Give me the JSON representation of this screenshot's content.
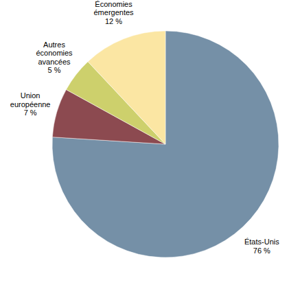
{
  "chart_data": {
    "type": "pie",
    "categories": [
      "États-Unis",
      "Union européenne",
      "Autres économies avancées",
      "Économies émergentes"
    ],
    "values": [
      76,
      7,
      5,
      12
    ],
    "value_labels": [
      "76 %",
      "7 %",
      "5 %",
      "12 %"
    ],
    "colors": [
      "#7590a7",
      "#8c4a50",
      "#cdd06c",
      "#fbe6a3"
    ],
    "data_labels": true
  }
}
